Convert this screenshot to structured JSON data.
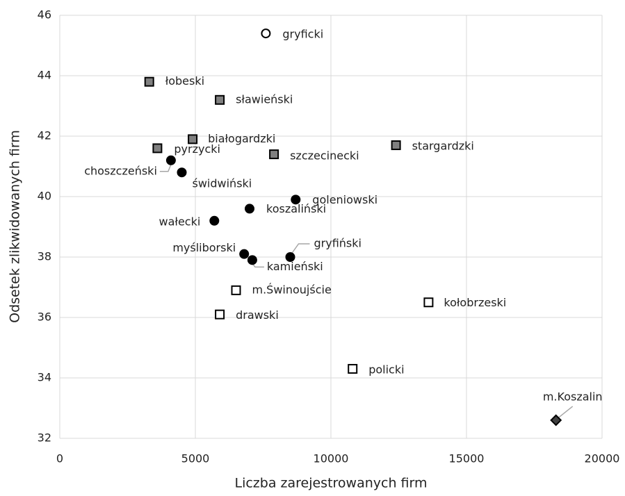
{
  "chart_data": {
    "type": "scatter",
    "x_label": "Liczba zarejestrowanych firm",
    "y_label": "Odsetek zlikwidowanych firm",
    "xlim": [
      0,
      20000
    ],
    "xticks": [
      0,
      5000,
      10000,
      15000,
      20000
    ],
    "ylim": [
      32,
      46
    ],
    "yticks": [
      32,
      34,
      36,
      38,
      40,
      42,
      44,
      46
    ],
    "grid": true,
    "series": [
      {
        "marker": "circle",
        "color": "#ffffff",
        "x": [
          7600
        ],
        "y": [
          45.4
        ],
        "labels": [
          "gryficki"
        ]
      },
      {
        "marker": "square",
        "color": "#808080",
        "x": [
          3300,
          5900,
          4900,
          3600,
          7900,
          12400
        ],
        "y": [
          43.8,
          43.2,
          41.9,
          41.6,
          41.4,
          41.7
        ],
        "labels": [
          "łobeski",
          "sławieński",
          "białogardzki",
          "pyrzycki",
          "szczecinecki",
          "stargardzki"
        ]
      },
      {
        "marker": "circle",
        "color": "#000000",
        "x": [
          4100,
          4500,
          8700,
          7000,
          5700,
          6800,
          7100,
          8500
        ],
        "y": [
          41.2,
          40.8,
          39.9,
          39.6,
          39.2,
          38.1,
          37.9,
          38.0
        ],
        "labels": [
          "choszczeński",
          "świdwiński",
          "goleniowski",
          "koszaliński",
          "wałecki",
          "myśliborski",
          "kamieński",
          "gryfiński"
        ]
      },
      {
        "marker": "square",
        "color": "#ffffff",
        "x": [
          6500,
          5900,
          13600,
          10800
        ],
        "y": [
          36.9,
          36.1,
          36.5,
          34.3
        ],
        "labels": [
          "m.Świnoujście",
          "drawski",
          "kołobrzeski",
          "policki"
        ]
      },
      {
        "marker": "diamond",
        "color": "#404040",
        "x": [
          18300
        ],
        "y": [
          32.6
        ],
        "labels": [
          "m.Koszalin"
        ]
      }
    ]
  }
}
